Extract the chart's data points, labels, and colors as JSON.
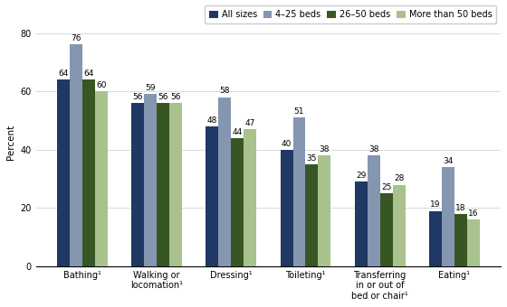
{
  "categories": [
    "Bathing¹",
    "Walking or\nlocomation¹",
    "Dressing¹",
    "Toileting¹",
    "Transferring\nin or out of\nbed or chair¹",
    "Eating¹"
  ],
  "series": {
    "All sizes": [
      64,
      56,
      48,
      40,
      29,
      19
    ],
    "4–25 beds": [
      76,
      59,
      58,
      51,
      38,
      34
    ],
    "26–50 beds": [
      64,
      56,
      44,
      35,
      25,
      18
    ],
    "More than 50 beds": [
      60,
      56,
      47,
      38,
      28,
      16
    ]
  },
  "colors": {
    "All sizes": "#1f3864",
    "4–25 beds": "#8496b0",
    "26–50 beds": "#375623",
    "More than 50 beds": "#a9c18c"
  },
  "legend_labels": [
    "All sizes",
    "4–25 beds",
    "26–50 beds",
    "More than 50 beds"
  ],
  "ylabel": "Percent",
  "ylim": [
    0,
    85
  ],
  "yticks": [
    0,
    20,
    40,
    60,
    80
  ],
  "bar_width": 0.17,
  "label_fontsize": 6.5,
  "axis_fontsize": 7.5,
  "legend_fontsize": 7,
  "tick_fontsize": 7,
  "background_color": "#ffffff"
}
